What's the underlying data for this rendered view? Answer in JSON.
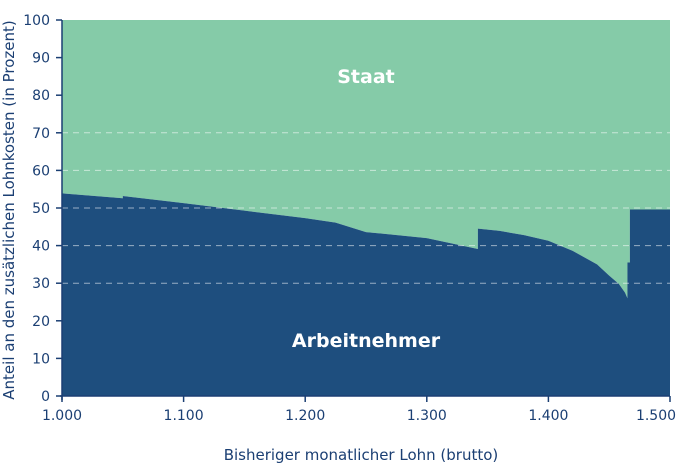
{
  "chart_data": {
    "type": "area",
    "xlabel": "Bisheriger monatlicher Lohn (brutto)",
    "ylabel": "Anteil an den zusätzlichen Lohnkosten (in Prozent)",
    "xlim": [
      1000,
      1500
    ],
    "ylim": [
      0,
      100
    ],
    "x_ticks": [
      1000,
      1100,
      1200,
      1300,
      1400,
      1500
    ],
    "x_tick_labels": [
      "1.000",
      "1.100",
      "1.200",
      "1.300",
      "1.400",
      "1.500"
    ],
    "y_ticks": [
      0,
      10,
      20,
      30,
      40,
      50,
      60,
      70,
      80,
      90,
      100
    ],
    "y_tick_labels": [
      "0",
      "10",
      "20",
      "30",
      "40",
      "50",
      "60",
      "70",
      "80",
      "90",
      "100"
    ],
    "grid": "horizontal dashed (30, 40, 50, 60, 70)",
    "series": [
      {
        "name": "Arbeitnehmer",
        "color": "#1e4e7e",
        "x": [
          1000,
          1050,
          1050,
          1100,
          1150,
          1200,
          1225,
          1250,
          1300,
          1342,
          1342,
          1360,
          1380,
          1400,
          1420,
          1440,
          1450,
          1458,
          1463,
          1465,
          1465,
          1467,
          1467,
          1500
        ],
        "y": [
          53.9,
          52.6,
          53.2,
          51.3,
          49.3,
          47.3,
          46.1,
          43.6,
          42.0,
          39.1,
          44.5,
          43.9,
          42.8,
          41.3,
          38.6,
          35.0,
          32.0,
          29.8,
          27.5,
          26.0,
          35.5,
          35.5,
          49.6,
          49.6
        ]
      },
      {
        "name": "Staat",
        "color": "#85cba8",
        "fill_to": 100
      }
    ]
  }
}
